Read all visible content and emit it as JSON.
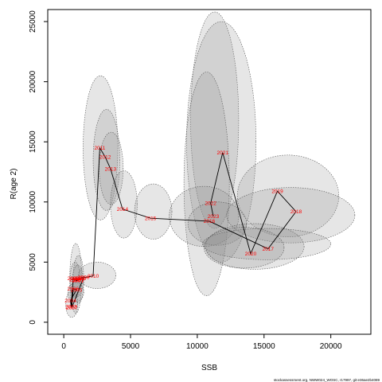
{
  "chart_data": {
    "type": "scatter",
    "title": "",
    "xlabel": "SSB",
    "ylabel": "R(age 2)",
    "xlim": [
      -1200,
      23000
    ],
    "ylim": [
      -1000,
      26000
    ],
    "xticks": [
      0,
      5000,
      10000,
      15000,
      20000
    ],
    "yticks": [
      0,
      5000,
      10000,
      15000,
      20000,
      25000
    ],
    "grid": false,
    "legend": "none",
    "colors": {
      "ellipse_fill": "#8c8c8c",
      "ellipse_stroke": "#555555",
      "line": "#000000",
      "label": "#ff0000"
    },
    "series": [
      {
        "years": [
          "1998",
          "1999",
          "2000",
          "2001",
          "2002",
          "2003",
          "2004",
          "2005",
          "2006",
          "2007",
          "2008",
          "2009",
          "2010",
          "2011",
          "2012",
          "2013",
          "2014",
          "2015",
          "2016",
          "2017",
          "2018",
          "2019",
          "2020",
          "2021",
          "2022",
          "2023"
        ],
        "x": [
          900,
          1100,
          850,
          1050,
          700,
          550,
          500,
          950,
          700,
          600,
          1500,
          1250,
          2200,
          2700,
          3100,
          3500,
          4400,
          6500,
          10900,
          15300,
          17400,
          16000,
          14000,
          11900,
          11000,
          11200
        ],
        "y": [
          3650,
          3550,
          3500,
          3450,
          3650,
          1300,
          1800,
          2700,
          2800,
          1200,
          3750,
          3650,
          3850,
          14500,
          13750,
          12750,
          9400,
          8650,
          8400,
          6100,
          9200,
          10900,
          5700,
          14100,
          9900,
          8800
        ]
      }
    ],
    "ellipses": [
      {
        "x": 900,
        "y": 3650,
        "rx": 450,
        "ry": 2900,
        "angle": 0
      },
      {
        "x": 1100,
        "y": 3550,
        "rx": 400,
        "ry": 2000,
        "angle": 0
      },
      {
        "x": 850,
        "y": 3500,
        "rx": 380,
        "ry": 1500,
        "angle": 0
      },
      {
        "x": 1050,
        "y": 3450,
        "rx": 400,
        "ry": 1300,
        "angle": 0
      },
      {
        "x": 600,
        "y": 1500,
        "rx": 450,
        "ry": 1100,
        "angle": 0
      },
      {
        "x": 900,
        "y": 2500,
        "rx": 600,
        "ry": 800,
        "angle": 0
      },
      {
        "x": 2500,
        "y": 3900,
        "rx": 1400,
        "ry": 1100,
        "angle": 0
      },
      {
        "x": 2750,
        "y": 14500,
        "rx": 1300,
        "ry": 6000,
        "angle": 0
      },
      {
        "x": 3200,
        "y": 13500,
        "rx": 1000,
        "ry": 4200,
        "angle": 0
      },
      {
        "x": 3550,
        "y": 12800,
        "rx": 900,
        "ry": 3000,
        "angle": 0
      },
      {
        "x": 4500,
        "y": 9800,
        "rx": 1000,
        "ry": 2800,
        "angle": 0
      },
      {
        "x": 6700,
        "y": 9200,
        "rx": 1400,
        "ry": 2300,
        "angle": 0
      },
      {
        "x": 11300,
        "y": 16800,
        "rx": 1800,
        "ry": 9000,
        "angle": 0
      },
      {
        "x": 11800,
        "y": 15000,
        "rx": 2600,
        "ry": 10000,
        "angle": 0
      },
      {
        "x": 10700,
        "y": 11500,
        "rx": 1700,
        "ry": 9300,
        "angle": 0
      },
      {
        "x": 10500,
        "y": 8800,
        "rx": 2600,
        "ry": 2500,
        "angle": 0
      },
      {
        "x": 11500,
        "y": 8200,
        "rx": 2200,
        "ry": 1800,
        "angle": 0
      },
      {
        "x": 16800,
        "y": 10500,
        "rx": 3800,
        "ry": 3400,
        "angle": 0
      },
      {
        "x": 17000,
        "y": 8900,
        "rx": 4800,
        "ry": 2300,
        "angle": 0
      },
      {
        "x": 14300,
        "y": 6300,
        "rx": 3700,
        "ry": 1900,
        "angle": 0
      },
      {
        "x": 15200,
        "y": 6500,
        "rx": 4800,
        "ry": 1300,
        "angle": 0
      },
      {
        "x": 13500,
        "y": 6200,
        "rx": 3000,
        "ry": 1700,
        "angle": 0
      }
    ],
    "footer": "stockassessment.org, NWW024_WOSC, r17997, git:e36ae2b4089"
  }
}
